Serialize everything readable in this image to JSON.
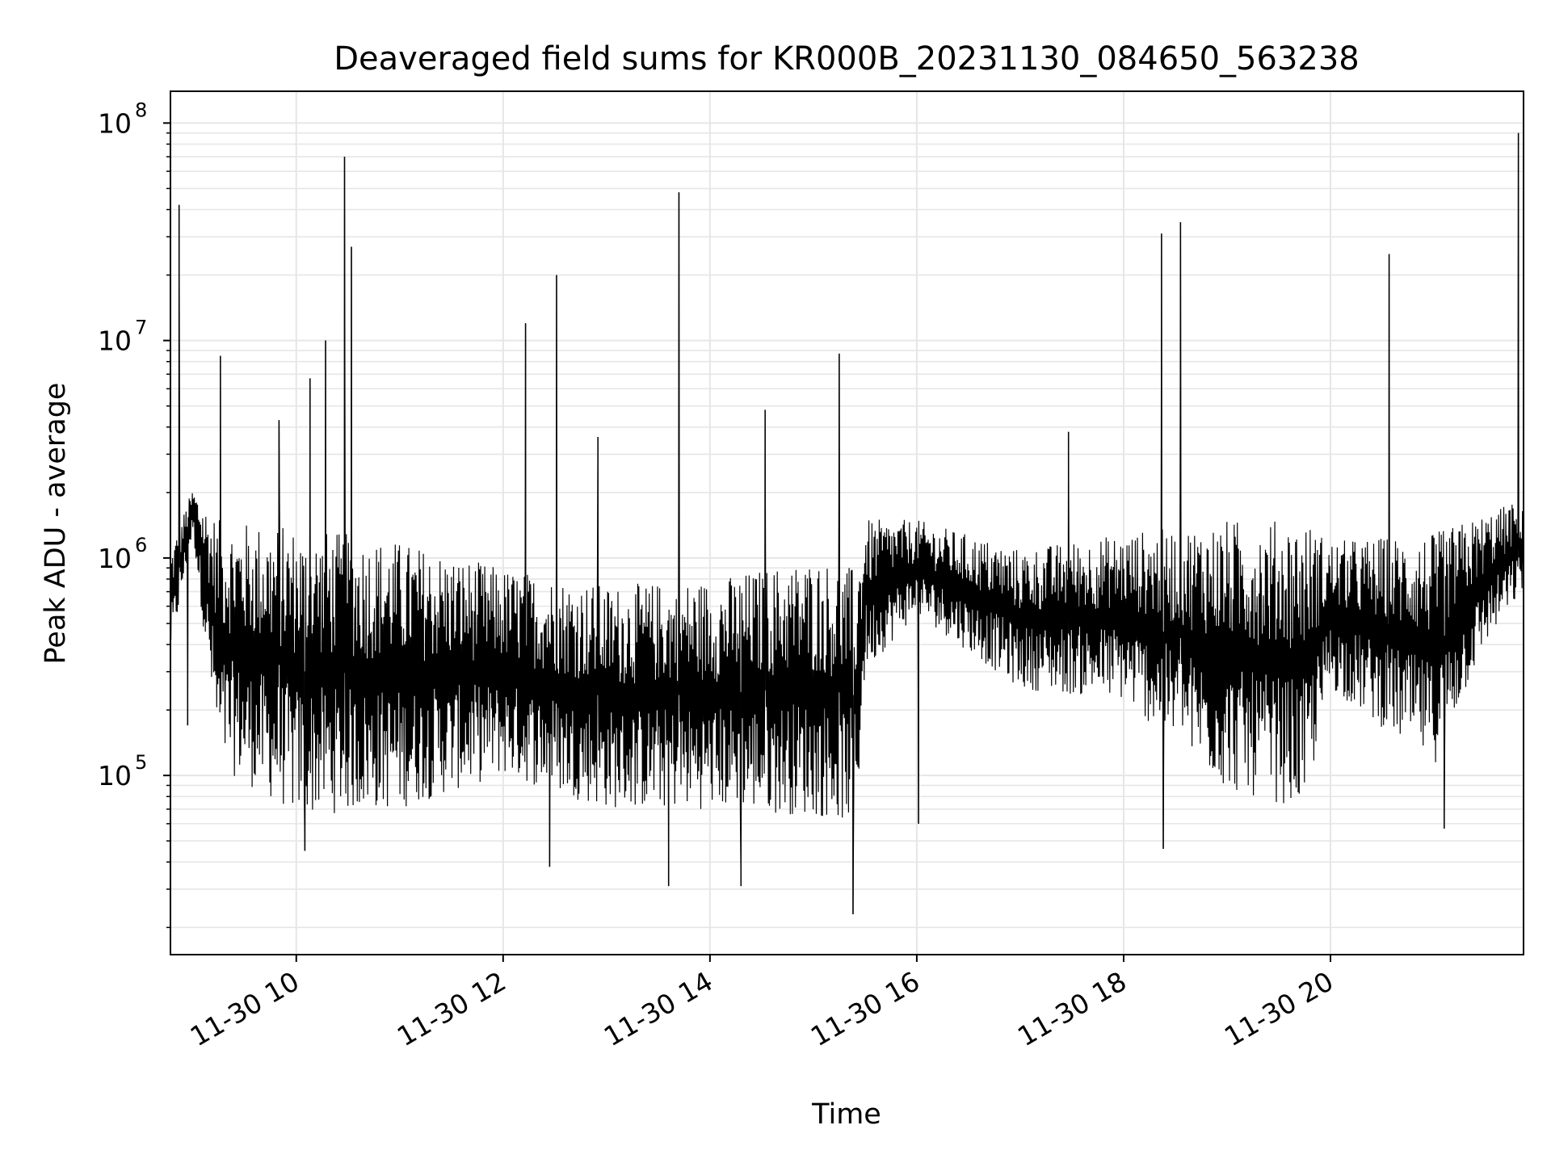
{
  "chart_data": {
    "type": "line",
    "title": "Deaveraged field sums for KR000B_20231130_084650_563238",
    "xlabel": "Time",
    "ylabel": "Peak ADU - average",
    "yscale": "log",
    "ylim": [
      15000,
      140000000
    ],
    "xlim": [
      "2023-11-30 08:47",
      "2023-11-30 21:52"
    ],
    "grid": true,
    "line_color": "#000000",
    "grid_color": "#e6e6e6",
    "x_ticks": [
      {
        "t": "2023-11-30 10:00",
        "label": "11-30 10"
      },
      {
        "t": "2023-11-30 12:00",
        "label": "11-30 12"
      },
      {
        "t": "2023-11-30 14:00",
        "label": "11-30 14"
      },
      {
        "t": "2023-11-30 16:00",
        "label": "11-30 16"
      },
      {
        "t": "2023-11-30 18:00",
        "label": "11-30 18"
      },
      {
        "t": "2023-11-30 20:00",
        "label": "11-30 20"
      }
    ],
    "y_ticks": [
      {
        "value": 100000,
        "base": "10",
        "exp": "5"
      },
      {
        "value": 1000000,
        "base": "10",
        "exp": "6"
      },
      {
        "value": 10000000,
        "base": "10",
        "exp": "7"
      },
      {
        "value": 100000000,
        "base": "10",
        "exp": "8"
      }
    ],
    "envelope": {
      "t": [
        "2023-11-30 08:47",
        "2023-11-30 09:00",
        "2023-11-30 09:15",
        "2023-11-30 10:00",
        "2023-11-30 11:00",
        "2023-11-30 12:00",
        "2023-11-30 13:00",
        "2023-11-30 14:00",
        "2023-11-30 15:00",
        "2023-11-30 15:25",
        "2023-11-30 15:30",
        "2023-11-30 16:00",
        "2023-11-30 17:00",
        "2023-11-30 18:00",
        "2023-11-30 19:00",
        "2023-11-30 19:45",
        "2023-11-30 20:00",
        "2023-11-30 21:00",
        "2023-11-30 21:30",
        "2023-11-30 21:52"
      ],
      "low": [
        350000,
        1300000,
        110000,
        65000,
        70000,
        100000,
        70000,
        70000,
        65000,
        60000,
        300000,
        550000,
        250000,
        220000,
        85000,
        70000,
        250000,
        110000,
        400000,
        700000
      ],
      "high": [
        1100000,
        2100000,
        1500000,
        1400000,
        1200000,
        900000,
        750000,
        800000,
        1000000,
        900000,
        1500000,
        1500000,
        1100000,
        1300000,
        1500000,
        1500000,
        1200000,
        1300000,
        1600000,
        1900000
      ]
    },
    "spikes": [
      {
        "t": "2023-11-30 08:52",
        "value": 42000000
      },
      {
        "t": "2023-11-30 09:16",
        "value": 8500000
      },
      {
        "t": "2023-11-30 09:50",
        "value": 4300000
      },
      {
        "t": "2023-11-30 10:08",
        "value": 6700000
      },
      {
        "t": "2023-11-30 10:17",
        "value": 10000000
      },
      {
        "t": "2023-11-30 10:28",
        "value": 70000000
      },
      {
        "t": "2023-11-30 10:32",
        "value": 27000000
      },
      {
        "t": "2023-11-30 12:13",
        "value": 12000000
      },
      {
        "t": "2023-11-30 12:31",
        "value": 20000000
      },
      {
        "t": "2023-11-30 12:55",
        "value": 3600000
      },
      {
        "t": "2023-11-30 13:42",
        "value": 48000000
      },
      {
        "t": "2023-11-30 14:32",
        "value": 4800000
      },
      {
        "t": "2023-11-30 15:15",
        "value": 8700000
      },
      {
        "t": "2023-11-30 17:28",
        "value": 3800000
      },
      {
        "t": "2023-11-30 18:22",
        "value": 31000000
      },
      {
        "t": "2023-11-30 18:33",
        "value": 35000000
      },
      {
        "t": "2023-11-30 20:34",
        "value": 25000000
      },
      {
        "t": "2023-11-30 21:49",
        "value": 90000000
      }
    ],
    "dips": [
      {
        "t": "2023-11-30 08:57",
        "value": 170000
      },
      {
        "t": "2023-11-30 10:05",
        "value": 45000
      },
      {
        "t": "2023-11-30 12:27",
        "value": 38000
      },
      {
        "t": "2023-11-30 13:36",
        "value": 31000
      },
      {
        "t": "2023-11-30 14:18",
        "value": 31000
      },
      {
        "t": "2023-11-30 15:23",
        "value": 23000
      },
      {
        "t": "2023-11-30 16:01",
        "value": 60000
      },
      {
        "t": "2023-11-30 18:23",
        "value": 46000
      },
      {
        "t": "2023-11-30 21:06",
        "value": 57000
      }
    ]
  }
}
